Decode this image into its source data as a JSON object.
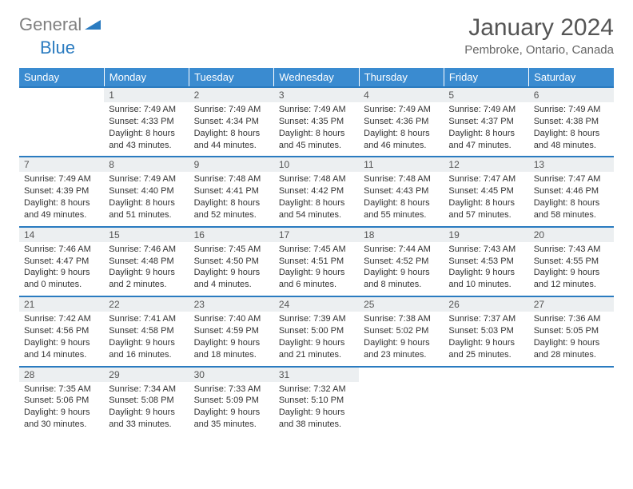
{
  "logo": {
    "grey": "General",
    "blue": "Blue"
  },
  "title": "January 2024",
  "location": "Pembroke, Ontario, Canada",
  "colors": {
    "header_bg": "#3a8bd0",
    "accent": "#2a7bc0",
    "daynum_bg": "#eceff1",
    "text": "#333333"
  },
  "weekdays": [
    "Sunday",
    "Monday",
    "Tuesday",
    "Wednesday",
    "Thursday",
    "Friday",
    "Saturday"
  ],
  "weeks": [
    [
      null,
      {
        "n": "1",
        "sr": "Sunrise: 7:49 AM",
        "ss": "Sunset: 4:33 PM",
        "d1": "Daylight: 8 hours",
        "d2": "and 43 minutes."
      },
      {
        "n": "2",
        "sr": "Sunrise: 7:49 AM",
        "ss": "Sunset: 4:34 PM",
        "d1": "Daylight: 8 hours",
        "d2": "and 44 minutes."
      },
      {
        "n": "3",
        "sr": "Sunrise: 7:49 AM",
        "ss": "Sunset: 4:35 PM",
        "d1": "Daylight: 8 hours",
        "d2": "and 45 minutes."
      },
      {
        "n": "4",
        "sr": "Sunrise: 7:49 AM",
        "ss": "Sunset: 4:36 PM",
        "d1": "Daylight: 8 hours",
        "d2": "and 46 minutes."
      },
      {
        "n": "5",
        "sr": "Sunrise: 7:49 AM",
        "ss": "Sunset: 4:37 PM",
        "d1": "Daylight: 8 hours",
        "d2": "and 47 minutes."
      },
      {
        "n": "6",
        "sr": "Sunrise: 7:49 AM",
        "ss": "Sunset: 4:38 PM",
        "d1": "Daylight: 8 hours",
        "d2": "and 48 minutes."
      }
    ],
    [
      {
        "n": "7",
        "sr": "Sunrise: 7:49 AM",
        "ss": "Sunset: 4:39 PM",
        "d1": "Daylight: 8 hours",
        "d2": "and 49 minutes."
      },
      {
        "n": "8",
        "sr": "Sunrise: 7:49 AM",
        "ss": "Sunset: 4:40 PM",
        "d1": "Daylight: 8 hours",
        "d2": "and 51 minutes."
      },
      {
        "n": "9",
        "sr": "Sunrise: 7:48 AM",
        "ss": "Sunset: 4:41 PM",
        "d1": "Daylight: 8 hours",
        "d2": "and 52 minutes."
      },
      {
        "n": "10",
        "sr": "Sunrise: 7:48 AM",
        "ss": "Sunset: 4:42 PM",
        "d1": "Daylight: 8 hours",
        "d2": "and 54 minutes."
      },
      {
        "n": "11",
        "sr": "Sunrise: 7:48 AM",
        "ss": "Sunset: 4:43 PM",
        "d1": "Daylight: 8 hours",
        "d2": "and 55 minutes."
      },
      {
        "n": "12",
        "sr": "Sunrise: 7:47 AM",
        "ss": "Sunset: 4:45 PM",
        "d1": "Daylight: 8 hours",
        "d2": "and 57 minutes."
      },
      {
        "n": "13",
        "sr": "Sunrise: 7:47 AM",
        "ss": "Sunset: 4:46 PM",
        "d1": "Daylight: 8 hours",
        "d2": "and 58 minutes."
      }
    ],
    [
      {
        "n": "14",
        "sr": "Sunrise: 7:46 AM",
        "ss": "Sunset: 4:47 PM",
        "d1": "Daylight: 9 hours",
        "d2": "and 0 minutes."
      },
      {
        "n": "15",
        "sr": "Sunrise: 7:46 AM",
        "ss": "Sunset: 4:48 PM",
        "d1": "Daylight: 9 hours",
        "d2": "and 2 minutes."
      },
      {
        "n": "16",
        "sr": "Sunrise: 7:45 AM",
        "ss": "Sunset: 4:50 PM",
        "d1": "Daylight: 9 hours",
        "d2": "and 4 minutes."
      },
      {
        "n": "17",
        "sr": "Sunrise: 7:45 AM",
        "ss": "Sunset: 4:51 PM",
        "d1": "Daylight: 9 hours",
        "d2": "and 6 minutes."
      },
      {
        "n": "18",
        "sr": "Sunrise: 7:44 AM",
        "ss": "Sunset: 4:52 PM",
        "d1": "Daylight: 9 hours",
        "d2": "and 8 minutes."
      },
      {
        "n": "19",
        "sr": "Sunrise: 7:43 AM",
        "ss": "Sunset: 4:53 PM",
        "d1": "Daylight: 9 hours",
        "d2": "and 10 minutes."
      },
      {
        "n": "20",
        "sr": "Sunrise: 7:43 AM",
        "ss": "Sunset: 4:55 PM",
        "d1": "Daylight: 9 hours",
        "d2": "and 12 minutes."
      }
    ],
    [
      {
        "n": "21",
        "sr": "Sunrise: 7:42 AM",
        "ss": "Sunset: 4:56 PM",
        "d1": "Daylight: 9 hours",
        "d2": "and 14 minutes."
      },
      {
        "n": "22",
        "sr": "Sunrise: 7:41 AM",
        "ss": "Sunset: 4:58 PM",
        "d1": "Daylight: 9 hours",
        "d2": "and 16 minutes."
      },
      {
        "n": "23",
        "sr": "Sunrise: 7:40 AM",
        "ss": "Sunset: 4:59 PM",
        "d1": "Daylight: 9 hours",
        "d2": "and 18 minutes."
      },
      {
        "n": "24",
        "sr": "Sunrise: 7:39 AM",
        "ss": "Sunset: 5:00 PM",
        "d1": "Daylight: 9 hours",
        "d2": "and 21 minutes."
      },
      {
        "n": "25",
        "sr": "Sunrise: 7:38 AM",
        "ss": "Sunset: 5:02 PM",
        "d1": "Daylight: 9 hours",
        "d2": "and 23 minutes."
      },
      {
        "n": "26",
        "sr": "Sunrise: 7:37 AM",
        "ss": "Sunset: 5:03 PM",
        "d1": "Daylight: 9 hours",
        "d2": "and 25 minutes."
      },
      {
        "n": "27",
        "sr": "Sunrise: 7:36 AM",
        "ss": "Sunset: 5:05 PM",
        "d1": "Daylight: 9 hours",
        "d2": "and 28 minutes."
      }
    ],
    [
      {
        "n": "28",
        "sr": "Sunrise: 7:35 AM",
        "ss": "Sunset: 5:06 PM",
        "d1": "Daylight: 9 hours",
        "d2": "and 30 minutes."
      },
      {
        "n": "29",
        "sr": "Sunrise: 7:34 AM",
        "ss": "Sunset: 5:08 PM",
        "d1": "Daylight: 9 hours",
        "d2": "and 33 minutes."
      },
      {
        "n": "30",
        "sr": "Sunrise: 7:33 AM",
        "ss": "Sunset: 5:09 PM",
        "d1": "Daylight: 9 hours",
        "d2": "and 35 minutes."
      },
      {
        "n": "31",
        "sr": "Sunrise: 7:32 AM",
        "ss": "Sunset: 5:10 PM",
        "d1": "Daylight: 9 hours",
        "d2": "and 38 minutes."
      },
      null,
      null,
      null
    ]
  ]
}
